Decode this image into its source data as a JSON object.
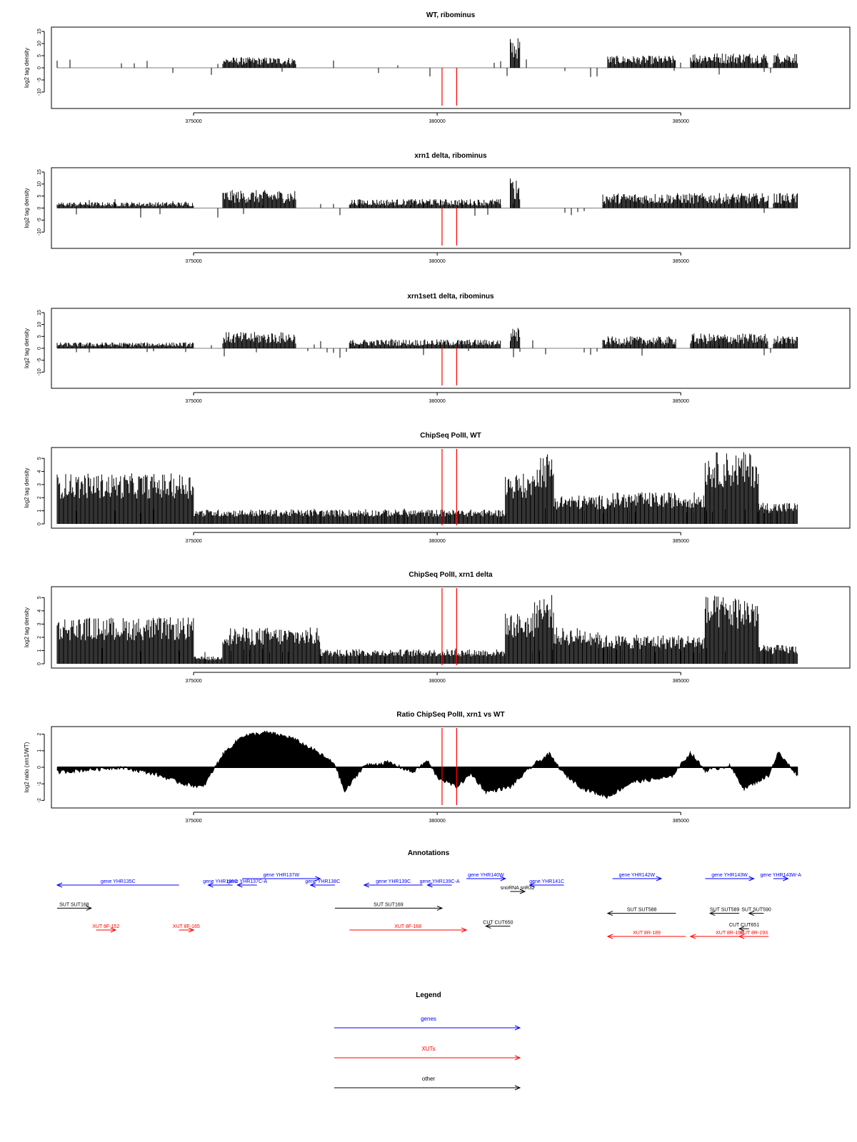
{
  "figure": {
    "x_ticks": [
      "375000",
      "380000",
      "385000"
    ],
    "x_tick_values": [
      375000,
      380000,
      385000
    ],
    "x_range": [
      372200,
      387400
    ],
    "marker_positions": [
      380100,
      380400
    ],
    "marker_color": "#ff0000"
  },
  "chart_data": [
    {
      "type": "bar",
      "title": "WT, ribominus",
      "ylabel": "log2 tag density",
      "ylim": [
        -15,
        15
      ],
      "yticks": [
        "15",
        "10",
        "5",
        "0",
        "-5",
        "-10"
      ],
      "ytick_values": [
        15,
        10,
        5,
        0,
        -5,
        -10
      ],
      "regions": [
        {
          "start": 372200,
          "end": 375600,
          "strand": "-",
          "level": -5
        },
        {
          "start": 375600,
          "end": 377100,
          "strand": "+",
          "level": 3.5
        },
        {
          "start": 377100,
          "end": 377600,
          "strand": "-",
          "level": -2.5
        },
        {
          "start": 378200,
          "end": 381000,
          "strand": "-",
          "level": -1.5
        },
        {
          "start": 381500,
          "end": 381700,
          "strand": "+",
          "level": 10
        },
        {
          "start": 381700,
          "end": 382800,
          "strand": "-",
          "level": -7
        },
        {
          "start": 383500,
          "end": 384900,
          "strand": "+",
          "level": 4
        },
        {
          "start": 383500,
          "end": 384900,
          "strand": "-",
          "level": -2
        },
        {
          "start": 385200,
          "end": 386800,
          "strand": "+",
          "level": 5
        },
        {
          "start": 385600,
          "end": 386800,
          "strand": "-",
          "level": -1.5
        },
        {
          "start": 386900,
          "end": 387400,
          "strand": "+",
          "level": 5
        }
      ]
    },
    {
      "type": "bar",
      "title": "xrn1 delta, ribominus",
      "ylabel": "log2 tag density",
      "ylim": [
        -15,
        15
      ],
      "yticks": [
        "15",
        "10",
        "5",
        "0",
        "-5",
        "-10"
      ],
      "ytick_values": [
        15,
        10,
        5,
        0,
        -5,
        -10
      ],
      "regions": [
        {
          "start": 372200,
          "end": 375000,
          "strand": "+",
          "level": 2
        },
        {
          "start": 372200,
          "end": 375000,
          "strand": "-",
          "level": -6
        },
        {
          "start": 375600,
          "end": 377100,
          "strand": "+",
          "level": 6
        },
        {
          "start": 377100,
          "end": 377600,
          "strand": "-",
          "level": -4
        },
        {
          "start": 378200,
          "end": 381300,
          "strand": "+",
          "level": 3
        },
        {
          "start": 378200,
          "end": 381300,
          "strand": "-",
          "level": -2
        },
        {
          "start": 381500,
          "end": 381700,
          "strand": "+",
          "level": 10
        },
        {
          "start": 381700,
          "end": 382800,
          "strand": "-",
          "level": -8
        },
        {
          "start": 383400,
          "end": 386800,
          "strand": "+",
          "level": 5
        },
        {
          "start": 383400,
          "end": 386800,
          "strand": "-",
          "level": -3
        },
        {
          "start": 386900,
          "end": 387400,
          "strand": "+",
          "level": 5
        }
      ]
    },
    {
      "type": "bar",
      "title": "xrn1set1 delta, ribominus",
      "ylabel": "log2 tag density",
      "ylim": [
        -15,
        15
      ],
      "yticks": [
        "15",
        "10",
        "5",
        "0",
        "-5",
        "-10"
      ],
      "ytick_values": [
        15,
        10,
        5,
        0,
        -5,
        -10
      ],
      "regions": [
        {
          "start": 372200,
          "end": 375000,
          "strand": "+",
          "level": 2
        },
        {
          "start": 372200,
          "end": 375000,
          "strand": "-",
          "level": -5
        },
        {
          "start": 375600,
          "end": 377100,
          "strand": "+",
          "level": 5.5
        },
        {
          "start": 377100,
          "end": 377600,
          "strand": "-",
          "level": -4
        },
        {
          "start": 378200,
          "end": 381300,
          "strand": "+",
          "level": 3
        },
        {
          "start": 378200,
          "end": 381300,
          "strand": "-",
          "level": -2
        },
        {
          "start": 381500,
          "end": 381700,
          "strand": "+",
          "level": 8
        },
        {
          "start": 381700,
          "end": 382800,
          "strand": "-",
          "level": -6
        },
        {
          "start": 383400,
          "end": 384900,
          "strand": "+",
          "level": 4
        },
        {
          "start": 383400,
          "end": 384900,
          "strand": "-",
          "level": -2
        },
        {
          "start": 385200,
          "end": 386800,
          "strand": "+",
          "level": 5
        },
        {
          "start": 385200,
          "end": 386800,
          "strand": "-",
          "level": -2
        },
        {
          "start": 386900,
          "end": 387400,
          "strand": "+",
          "level": 4.5
        }
      ]
    },
    {
      "type": "bar",
      "title": "ChipSeq PolII, WT",
      "ylabel": "log2 tag density",
      "ylim": [
        0,
        5.5
      ],
      "yticks": [
        "0",
        "1",
        "2",
        "3",
        "4",
        "5"
      ],
      "ytick_values": [
        0,
        1,
        2,
        3,
        4,
        5
      ],
      "regions": [
        {
          "start": 372200,
          "end": 375000,
          "level": 3.5
        },
        {
          "start": 375000,
          "end": 378000,
          "level": 1
        },
        {
          "start": 378000,
          "end": 381400,
          "level": 1
        },
        {
          "start": 381400,
          "end": 382000,
          "level": 3.5
        },
        {
          "start": 382000,
          "end": 382400,
          "level": 5
        },
        {
          "start": 382400,
          "end": 383500,
          "level": 2
        },
        {
          "start": 383500,
          "end": 385500,
          "level": 2.2
        },
        {
          "start": 385500,
          "end": 386600,
          "level": 5
        },
        {
          "start": 386600,
          "end": 387400,
          "level": 1.5
        }
      ]
    },
    {
      "type": "bar",
      "title": "ChipSeq PolII, xrn1 delta",
      "ylabel": "log2 tag density",
      "ylim": [
        0,
        5.5
      ],
      "yticks": [
        "0",
        "1",
        "2",
        "3",
        "4",
        "5"
      ],
      "ytick_values": [
        0,
        1,
        2,
        3,
        4,
        5
      ],
      "regions": [
        {
          "start": 372200,
          "end": 375000,
          "level": 3.2
        },
        {
          "start": 375000,
          "end": 375600,
          "level": 0.5
        },
        {
          "start": 375600,
          "end": 377600,
          "level": 2.5
        },
        {
          "start": 377600,
          "end": 381400,
          "level": 1
        },
        {
          "start": 381400,
          "end": 382000,
          "level": 3.5
        },
        {
          "start": 382000,
          "end": 382400,
          "level": 4.8
        },
        {
          "start": 382400,
          "end": 383300,
          "level": 2.5
        },
        {
          "start": 383300,
          "end": 385500,
          "level": 2
        },
        {
          "start": 385500,
          "end": 386600,
          "level": 4.7
        },
        {
          "start": 386600,
          "end": 387400,
          "level": 1.3
        }
      ]
    },
    {
      "type": "area",
      "title": "Ratio ChipSeq PolII, xrn1 vs WT",
      "ylabel": "log2 ratio (xrn1/WT)",
      "ylim": [
        -2.2,
        2.2
      ],
      "yticks": [
        "2",
        "1",
        "0",
        "-1",
        "-2"
      ],
      "ytick_values": [
        2,
        1,
        0,
        -1,
        -2
      ],
      "x": [
        372200,
        373500,
        374200,
        374800,
        375200,
        375600,
        376000,
        376500,
        377000,
        377500,
        377900,
        378100,
        378500,
        379000,
        379500,
        379800,
        380000,
        380400,
        380700,
        381000,
        381500,
        382000,
        382300,
        382600,
        383000,
        383500,
        384000,
        384800,
        385200,
        385500,
        386000,
        386300,
        386800,
        387000,
        387400
      ],
      "y": [
        -0.3,
        0,
        -0.4,
        -1.0,
        -1.2,
        0.8,
        1.9,
        2.1,
        1.8,
        1.0,
        0.2,
        -1.5,
        0.1,
        0.3,
        -0.3,
        0.4,
        -0.6,
        -1.2,
        -0.4,
        -1.5,
        -1.2,
        0.2,
        0.8,
        -0.4,
        -1.3,
        -1.8,
        -0.9,
        -0.6,
        0.9,
        -0.2,
        0.1,
        -1.3,
        -0.5,
        0.9,
        -0.5
      ]
    }
  ],
  "annotations": {
    "title": "Annotations",
    "items": [
      {
        "label": "gene YHR135C",
        "start": 372200,
        "end": 374700,
        "dir": "left",
        "color": "#0000ff",
        "row": 0
      },
      {
        "label": "gene YHR136C",
        "start": 375300,
        "end": 375800,
        "dir": "left",
        "color": "#0000ff",
        "row": 0
      },
      {
        "label": "gene YHR137W",
        "start": 376000,
        "end": 377600,
        "dir": "right",
        "color": "#0000ff",
        "row": -0.5
      },
      {
        "label": "gene YHR137C-A",
        "start": 375900,
        "end": 376300,
        "dir": "left",
        "color": "#0000ff",
        "row": 0
      },
      {
        "label": "gene YHR138C",
        "start": 377400,
        "end": 377900,
        "dir": "left",
        "color": "#0000ff",
        "row": 0
      },
      {
        "label": "gene YHR139C",
        "start": 378500,
        "end": 379700,
        "dir": "left",
        "color": "#0000ff",
        "row": 0
      },
      {
        "label": "gene YHR140W",
        "start": 380600,
        "end": 381400,
        "dir": "right",
        "color": "#0000ff",
        "row": -0.5
      },
      {
        "label": "gene YHR139C-A",
        "start": 379800,
        "end": 380300,
        "dir": "left",
        "color": "#0000ff",
        "row": 0
      },
      {
        "label": "snoRNA snR32",
        "start": 381500,
        "end": 381800,
        "dir": "right",
        "color": "#000000",
        "row": 0.5
      },
      {
        "label": "gene YHR141C",
        "start": 381900,
        "end": 382600,
        "dir": "left",
        "color": "#0000ff",
        "row": 0
      },
      {
        "label": "gene YHR142W",
        "start": 383600,
        "end": 384600,
        "dir": "right",
        "color": "#0000ff",
        "row": -0.5
      },
      {
        "label": "gene YHR143W",
        "start": 385500,
        "end": 386500,
        "dir": "right",
        "color": "#0000ff",
        "row": -0.5
      },
      {
        "label": "gene YHR143W-A",
        "start": 386900,
        "end": 387200,
        "dir": "right",
        "color": "#0000ff",
        "row": -0.5
      },
      {
        "label": "SUT SUT168",
        "start": 372200,
        "end": 372900,
        "dir": "right",
        "color": "#000000",
        "row": 1.8
      },
      {
        "label": "SUT SUT169",
        "start": 377900,
        "end": 380100,
        "dir": "right",
        "color": "#000000",
        "row": 1.8
      },
      {
        "label": "SUT SUT588",
        "start": 383500,
        "end": 384900,
        "dir": "left",
        "color": "#000000",
        "row": 2.2
      },
      {
        "label": "SUT SUT589",
        "start": 385600,
        "end": 386200,
        "dir": "left",
        "color": "#000000",
        "row": 2.2
      },
      {
        "label": "SUT SUT590",
        "start": 386400,
        "end": 386700,
        "dir": "left",
        "color": "#000000",
        "row": 2.2
      },
      {
        "label": "CUT CUT650",
        "start": 381000,
        "end": 381500,
        "dir": "left",
        "color": "#000000",
        "row": 3.2
      },
      {
        "label": "CUT CUT651",
        "start": 386200,
        "end": 386400,
        "dir": "left",
        "color": "#000000",
        "row": 3.4
      },
      {
        "label": "XUT 8F-152",
        "start": 373000,
        "end": 373400,
        "dir": "right",
        "color": "#ff0000",
        "row": 3.5
      },
      {
        "label": "XUT 8F-165",
        "start": 374700,
        "end": 375000,
        "dir": "right",
        "color": "#ff0000",
        "row": 3.5
      },
      {
        "label": "XUT 8F-168",
        "start": 378200,
        "end": 380600,
        "dir": "right",
        "color": "#ff0000",
        "row": 3.5
      },
      {
        "label": "XUT 8R-189",
        "start": 383500,
        "end": 385100,
        "dir": "left",
        "color": "#ff0000",
        "row": 4.0
      },
      {
        "label": "XUT 8R-190",
        "start": 385200,
        "end": 386800,
        "dir": "left",
        "color": "#ff0000",
        "row": 4.0
      },
      {
        "label": "XUT 8R-193",
        "start": 386200,
        "end": 386800,
        "dir": "left",
        "color": "#ff0000",
        "row": 4.0
      }
    ]
  },
  "legend": {
    "title": "Legend",
    "entries": [
      {
        "label": "genes",
        "color": "#0000ff"
      },
      {
        "label": "XUTs",
        "color": "#ff0000"
      },
      {
        "label": "other",
        "color": "#000000"
      }
    ]
  }
}
